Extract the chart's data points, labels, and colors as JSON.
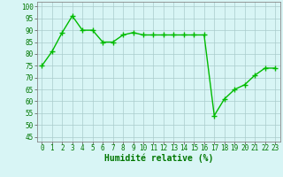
{
  "x": [
    0,
    1,
    2,
    3,
    4,
    5,
    6,
    7,
    8,
    9,
    10,
    11,
    12,
    13,
    14,
    15,
    16,
    17,
    18,
    19,
    20,
    21,
    22,
    23
  ],
  "y": [
    75,
    81,
    89,
    96,
    90,
    90,
    85,
    85,
    88,
    89,
    88,
    88,
    88,
    88,
    88,
    88,
    88,
    54,
    61,
    65,
    67,
    71,
    74,
    74
  ],
  "line_color": "#00bb00",
  "marker": "+",
  "marker_size": 4,
  "linewidth": 1.0,
  "xlabel": "Humidité relative (%)",
  "xlabel_color": "#007700",
  "xlabel_fontsize": 7,
  "ylabel_ticks": [
    45,
    50,
    55,
    60,
    65,
    70,
    75,
    80,
    85,
    90,
    95,
    100
  ],
  "xlim": [
    -0.5,
    23.5
  ],
  "ylim": [
    43,
    102
  ],
  "background_color": "#d8f5f5",
  "grid_color": "#aacccc",
  "tick_fontsize": 5.5,
  "tick_color": "#007700"
}
